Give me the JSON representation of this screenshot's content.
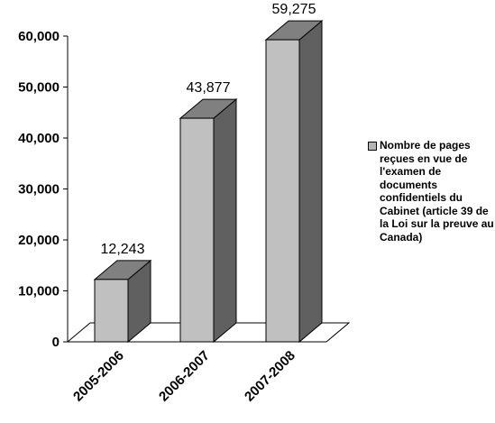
{
  "chart_data": {
    "type": "bar",
    "style": "3d-column",
    "categories": [
      "2005-2006",
      "2006-2007",
      "2007-2008"
    ],
    "series": [
      {
        "name": "Nombre de pages reçues en vue de l'examen de documents confidentiels du Cabinet (article 39 de la Loi sur la preuve au Canada)",
        "values": [
          12243,
          43877,
          59275
        ],
        "data_labels": [
          "12,243",
          "43,877",
          "59,275"
        ]
      }
    ],
    "yticks": [
      "0",
      "10,000",
      "20,000",
      "30,000",
      "40,000",
      "50,000",
      "60,000"
    ],
    "ylim": [
      0,
      60000
    ],
    "grid": false,
    "legend_position": "right",
    "colors": {
      "bar_front": "#c0c0c0",
      "bar_side": "#606060",
      "bar_top": "#808080",
      "axis": "#000000"
    }
  }
}
